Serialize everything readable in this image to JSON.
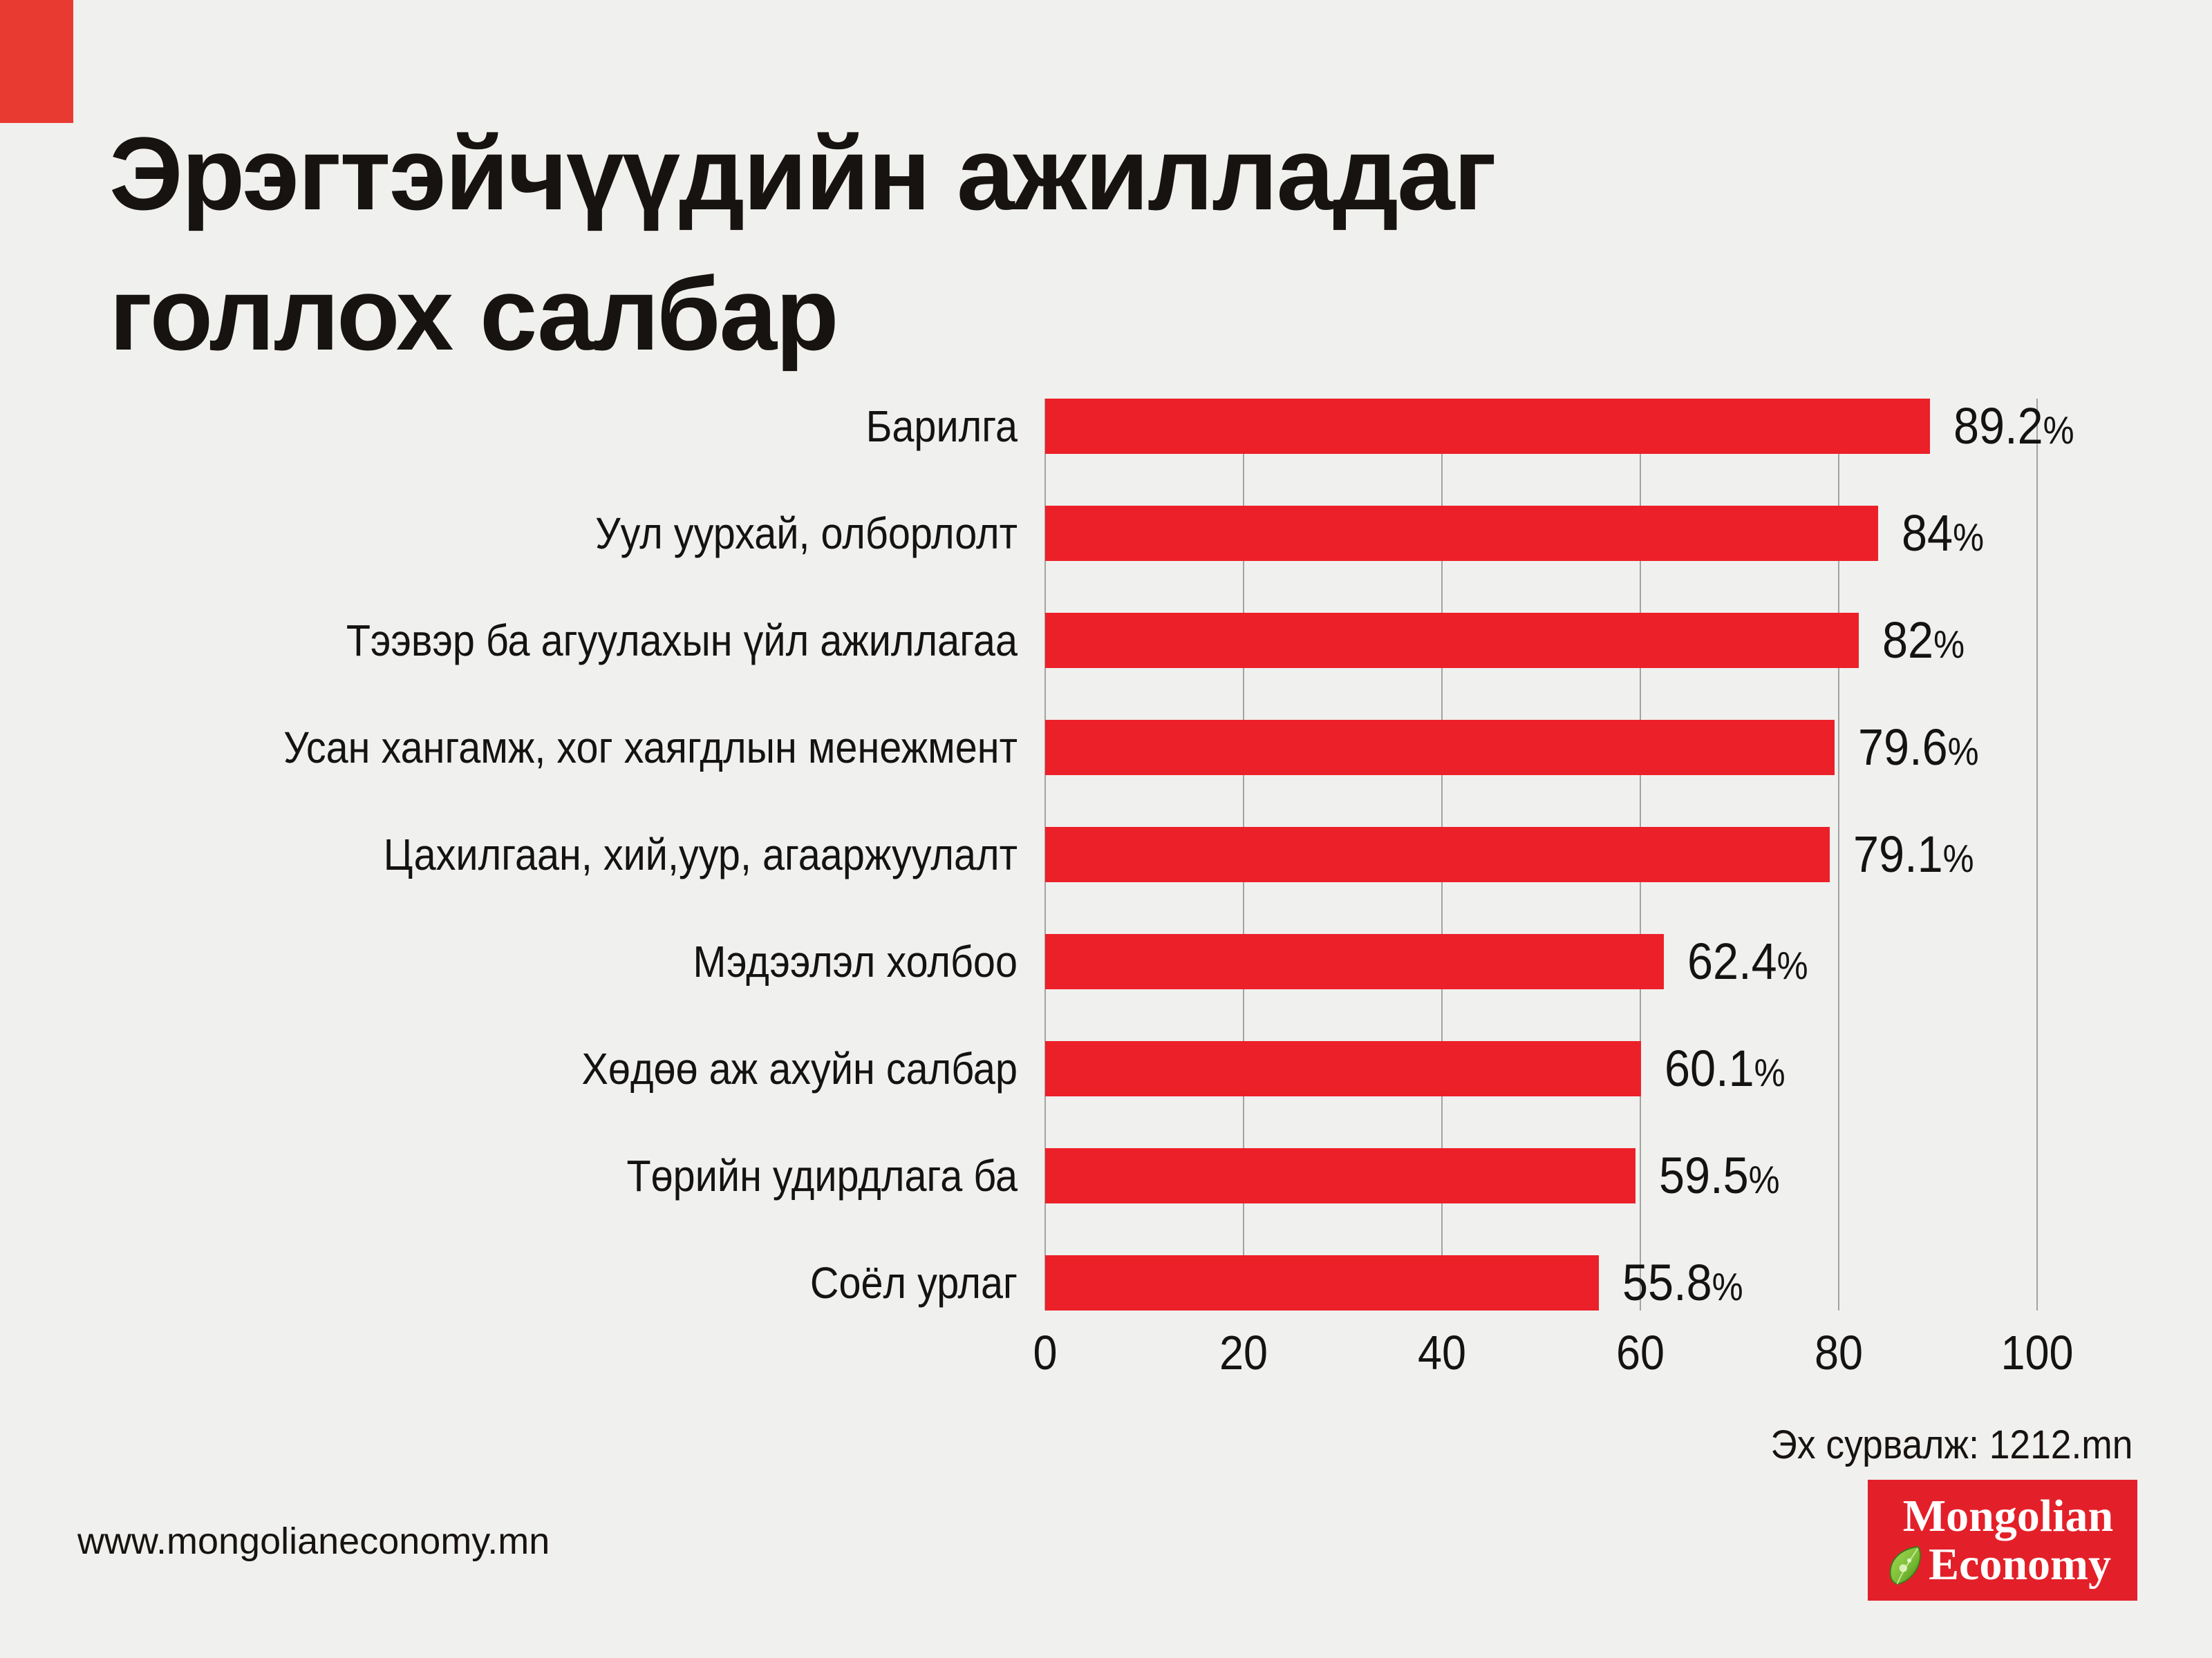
{
  "page": {
    "background": "#f0f0ee",
    "corner_accent_color": "#e93a31"
  },
  "title": {
    "line1": "Эрэгтэйчүүдийн ажилладаг",
    "line2": "голлох салбар"
  },
  "chart_data": {
    "type": "bar",
    "orientation": "horizontal",
    "categories": [
      "Барилга",
      "Уул уурхай, олборлолт",
      "Тээвэр ба агуулахын үйл ажиллагаа",
      "Усан хангамж, хог хаягдлын менежмент",
      "Цахилгаан, хий,уур, агааржуулалт",
      "Мэдээлэл холбоо",
      "Хөдөө аж ахуйн салбар",
      "Төрийн удирдлага ба",
      "Соёл урлаг"
    ],
    "values": [
      89.2,
      84,
      82,
      79.6,
      79.1,
      62.4,
      60.1,
      59.5,
      55.8
    ],
    "value_labels": [
      "89.2%",
      "84%",
      "82%",
      "79.6%",
      "79.1%",
      "62.4%",
      "60.1%",
      "59.5%",
      "55.8%"
    ],
    "xlim": [
      0,
      100
    ],
    "x_ticks": [
      "0",
      "20",
      "40",
      "60",
      "80",
      "100"
    ],
    "bar_color": "#ec2028",
    "grid": true,
    "gridline_color": "#a3a3a3",
    "legend": "none",
    "title": "Эрэгтэйчүүдийн ажилладаг голлох салбар"
  },
  "source": {
    "label": "Эх сурвалж: 1212.mn"
  },
  "footer": {
    "website": "www.mongolianeconomy.mn"
  },
  "logo": {
    "line1": "Mongolian",
    "line2": "Economy",
    "background": "#e32029",
    "text_color": "#ffffff",
    "leaf_dark": "#4a9422",
    "leaf_light": "#8cc63f"
  }
}
